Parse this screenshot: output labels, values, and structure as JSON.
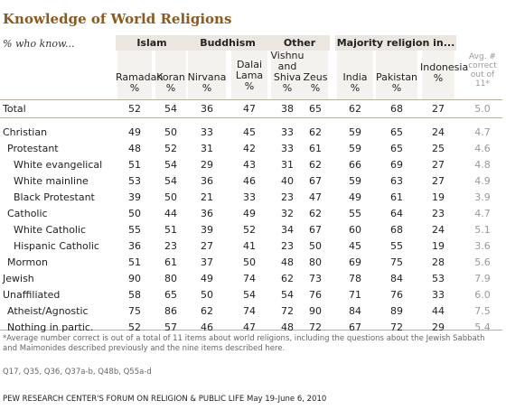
{
  "chart_data": {
    "type": "table",
    "title": "Knowledge of World Religions",
    "subtitle": "% who know...",
    "groups": [
      {
        "label": "Islam",
        "span": [
          0,
          1
        ]
      },
      {
        "label": "Buddhism",
        "span": [
          2,
          3
        ]
      },
      {
        "label": "Other",
        "span": [
          4,
          5
        ]
      },
      {
        "label": "Majority religion in...",
        "span": [
          6,
          8
        ]
      }
    ],
    "columns": [
      {
        "name": "Ramadan",
        "unit": "%"
      },
      {
        "name": "Koran",
        "unit": "%"
      },
      {
        "name": "Nirvana",
        "unit": "%"
      },
      {
        "name": "Dalai Lama",
        "unit": "%"
      },
      {
        "name": "Vishnu and Shiva",
        "unit": "%"
      },
      {
        "name": "Zeus",
        "unit": "%"
      },
      {
        "name": "India",
        "unit": "%"
      },
      {
        "name": "Pakistan",
        "unit": "%"
      },
      {
        "name": "Indonesia",
        "unit": "%"
      },
      {
        "name": "Avg. # correct out of 11*",
        "unit": ""
      }
    ],
    "rows": [
      {
        "label": "Total",
        "indent": 0,
        "values": [
          52,
          54,
          36,
          47,
          38,
          65,
          62,
          68,
          27,
          5.0
        ]
      },
      {
        "label": "Christian",
        "indent": 0,
        "values": [
          49,
          50,
          33,
          45,
          33,
          62,
          59,
          65,
          24,
          4.7
        ]
      },
      {
        "label": "Protestant",
        "indent": 1,
        "values": [
          48,
          52,
          31,
          42,
          33,
          61,
          59,
          65,
          25,
          4.6
        ]
      },
      {
        "label": "White evangelical",
        "indent": 2,
        "values": [
          51,
          54,
          29,
          43,
          31,
          62,
          66,
          69,
          27,
          4.8
        ]
      },
      {
        "label": "White mainline",
        "indent": 2,
        "values": [
          53,
          54,
          36,
          46,
          40,
          67,
          59,
          63,
          27,
          4.9
        ]
      },
      {
        "label": "Black Protestant",
        "indent": 2,
        "values": [
          39,
          50,
          21,
          33,
          23,
          47,
          49,
          61,
          19,
          3.9
        ]
      },
      {
        "label": "Catholic",
        "indent": 1,
        "values": [
          50,
          44,
          36,
          49,
          32,
          62,
          55,
          64,
          23,
          4.7
        ]
      },
      {
        "label": "White Catholic",
        "indent": 2,
        "values": [
          55,
          51,
          39,
          52,
          34,
          67,
          60,
          68,
          24,
          5.1
        ]
      },
      {
        "label": "Hispanic Catholic",
        "indent": 2,
        "values": [
          36,
          23,
          27,
          41,
          23,
          50,
          45,
          55,
          19,
          3.6
        ]
      },
      {
        "label": "Mormon",
        "indent": 1,
        "values": [
          51,
          61,
          37,
          50,
          48,
          80,
          69,
          75,
          28,
          5.6
        ]
      },
      {
        "label": "Jewish",
        "indent": 0,
        "values": [
          90,
          80,
          49,
          74,
          62,
          73,
          78,
          84,
          53,
          7.9
        ]
      },
      {
        "label": "Unaffiliated",
        "indent": 0,
        "values": [
          58,
          65,
          50,
          54,
          54,
          76,
          71,
          76,
          33,
          6.0
        ]
      },
      {
        "label": "Atheist/Agnostic",
        "indent": 1,
        "values": [
          75,
          86,
          62,
          74,
          72,
          90,
          84,
          89,
          44,
          7.5
        ]
      },
      {
        "label": "Nothing in partic.",
        "indent": 1,
        "values": [
          52,
          57,
          46,
          47,
          48,
          72,
          67,
          72,
          29,
          5.4
        ]
      }
    ],
    "footnote": "*Average number correct is out of a total of 11 items about world religions, including the questions about the Jewish Sabbath and Maimonides described previously and the nine items described here.",
    "questions": "Q17, Q35, Q36, Q37a-b, Q48b, Q55a-d",
    "source": "PEW RESEARCH CENTER'S FORUM ON RELIGION & PUBLIC LIFE May 19-June 6, 2010"
  }
}
